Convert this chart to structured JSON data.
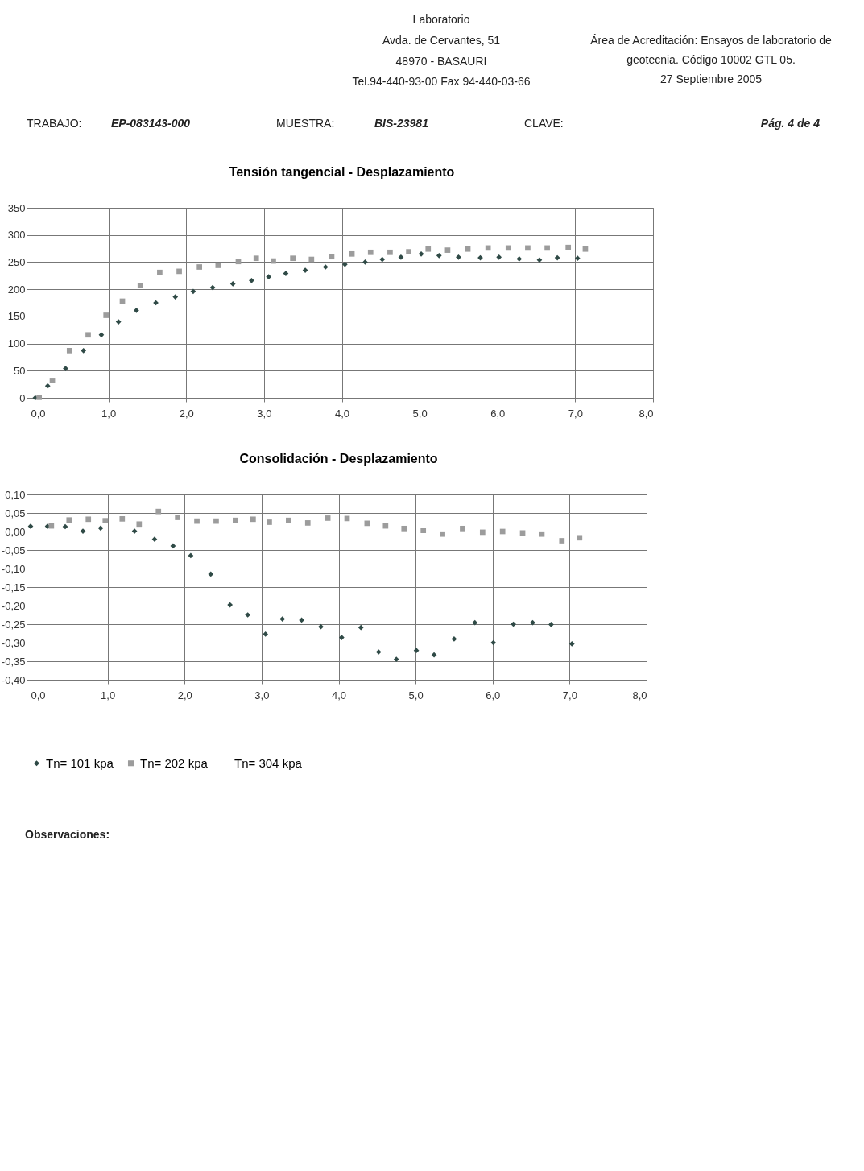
{
  "chart_data": [
    {
      "type": "scatter",
      "title": "Tensión tangencial - Desplazamiento",
      "annotations": [
        "Laboratorio",
        "Avda. de Cervantes, 51",
        "48970 - BASAURI",
        "Tel.94-440-93-00  Fax 94-440-03-66",
        "Área de Acreditación: Ensayos de laboratorio de",
        "geotecnia. Código 10002 GTL 05.",
        "27 Septiembre 2005",
        "TRABAJO:",
        "EP-083143-000",
        "MUESTRA:",
        "BIS-23981",
        "CLAVE:",
        "Pág. 4 de 4"
      ],
      "xlim": [
        0,
        8
      ],
      "xticks": [
        {
          "value": 0,
          "label": "0,0"
        },
        {
          "value": 1,
          "label": "1,0"
        },
        {
          "value": 2,
          "label": "2,0"
        },
        {
          "value": 3,
          "label": "3,0"
        },
        {
          "value": 4,
          "label": "4,0"
        },
        {
          "value": 5,
          "label": "5,0"
        },
        {
          "value": 6,
          "label": "6,0"
        },
        {
          "value": 7,
          "label": "7,0"
        },
        {
          "value": 8,
          "label": "8,0"
        }
      ],
      "ylim": [
        0,
        350
      ],
      "yticks": [
        0,
        50,
        100,
        150,
        200,
        250,
        300,
        350
      ],
      "grid": true,
      "legend": false,
      "series": [
        {
          "color": "#2f4a46",
          "marker": "diamond",
          "x": [
            0.06,
            0.22,
            0.45,
            0.68,
            0.91,
            1.13,
            1.36,
            1.61,
            1.86,
            2.09,
            2.34,
            2.6,
            2.84,
            3.06,
            3.28,
            3.53,
            3.79,
            4.04,
            4.3,
            4.52,
            4.76,
            5.02,
            5.25,
            5.5,
            5.78,
            6.02,
            6.28,
            6.54,
            6.77,
            7.03
          ],
          "values": [
            0,
            22,
            54,
            87,
            116,
            140,
            161,
            175,
            186,
            196,
            203,
            210,
            216,
            223,
            229,
            235,
            241,
            246,
            250,
            255,
            259,
            265,
            262,
            259,
            258,
            259,
            256,
            254,
            258,
            257
          ]
        },
        {
          "color": "#9c9c9c",
          "marker": "square",
          "x": [
            0.11,
            0.28,
            0.5,
            0.74,
            0.97,
            1.18,
            1.41,
            1.66,
            1.91,
            2.17,
            2.41,
            2.67,
            2.9,
            3.12,
            3.37,
            3.61,
            3.87,
            4.13,
            4.37,
            4.62,
            4.86,
            5.11,
            5.36,
            5.62,
            5.88,
            6.14,
            6.39,
            6.64,
            6.91,
            7.13
          ],
          "values": [
            1,
            32,
            87,
            116,
            152,
            178,
            207,
            231,
            233,
            241,
            244,
            251,
            257,
            252,
            257,
            255,
            260,
            265,
            268,
            268,
            269,
            274,
            272,
            274,
            276,
            276,
            276,
            276,
            277,
            274
          ]
        }
      ]
    },
    {
      "type": "scatter",
      "title": "Consolidación - Desplazamiento",
      "annotations": [
        "Observaciones:"
      ],
      "xlim": [
        0,
        8
      ],
      "xticks": [
        {
          "value": 0,
          "label": "0,0"
        },
        {
          "value": 1,
          "label": "1,0"
        },
        {
          "value": 2,
          "label": "2,0"
        },
        {
          "value": 3,
          "label": "3,0"
        },
        {
          "value": 4,
          "label": "4,0"
        },
        {
          "value": 5,
          "label": "5,0"
        },
        {
          "value": 6,
          "label": "6,0"
        },
        {
          "value": 7,
          "label": "7,0"
        },
        {
          "value": 8,
          "label": "8,0"
        }
      ],
      "ylim": [
        -0.4,
        0.1
      ],
      "yticks": [
        {
          "value": 0.1,
          "label": "0,10"
        },
        {
          "value": 0.05,
          "label": "0,05"
        },
        {
          "value": 0,
          "label": "0,00"
        },
        {
          "value": -0.05,
          "label": "-0,05"
        },
        {
          "value": -0.1,
          "label": "-0,10"
        },
        {
          "value": -0.15,
          "label": "-0,15"
        },
        {
          "value": -0.2,
          "label": "-0,20"
        },
        {
          "value": -0.25,
          "label": "-0,25"
        },
        {
          "value": -0.3,
          "label": "-0,30"
        },
        {
          "value": -0.35,
          "label": "-0,35"
        },
        {
          "value": -0.4,
          "label": "-0,40"
        }
      ],
      "grid": true,
      "legend": "bottom",
      "series": [
        {
          "name": "Tn= 101 kpa",
          "color": "#2f4a46",
          "marker": "diamond",
          "x": [
            0.0,
            0.22,
            0.45,
            0.68,
            0.91,
            1.35,
            1.61,
            1.85,
            2.08,
            2.34,
            2.59,
            2.82,
            3.05,
            3.27,
            3.52,
            3.77,
            4.04,
            4.29,
            4.52,
            4.75,
            5.01,
            5.24,
            5.5,
            5.77,
            6.01,
            6.27,
            6.52,
            6.76,
            7.03
          ],
          "values": [
            0.014,
            0.014,
            0.013,
            0.001,
            0.009,
            0.001,
            -0.021,
            -0.039,
            -0.065,
            -0.115,
            -0.198,
            -0.225,
            -0.277,
            -0.236,
            -0.239,
            -0.257,
            -0.286,
            -0.259,
            -0.325,
            -0.345,
            -0.321,
            -0.333,
            -0.29,
            -0.246,
            -0.3,
            -0.25,
            -0.246,
            -0.251,
            -0.303
          ]
        },
        {
          "name": "Tn= 202 kpa",
          "color": "#9c9c9c",
          "marker": "square",
          "x": [
            0.27,
            0.5,
            0.75,
            0.97,
            1.19,
            1.41,
            1.66,
            1.91,
            2.16,
            2.41,
            2.66,
            2.89,
            3.1,
            3.35,
            3.6,
            3.86,
            4.11,
            4.37,
            4.61,
            4.85,
            5.1,
            5.35,
            5.61,
            5.87,
            6.13,
            6.39,
            6.64,
            6.9,
            7.13
          ],
          "values": [
            0.015,
            0.031,
            0.033,
            0.029,
            0.034,
            0.02,
            0.054,
            0.038,
            0.028,
            0.028,
            0.03,
            0.033,
            0.025,
            0.03,
            0.023,
            0.036,
            0.035,
            0.022,
            0.015,
            0.008,
            0.003,
            -0.007,
            0.008,
            -0.002,
            0.0,
            -0.004,
            -0.007,
            -0.025,
            -0.017
          ]
        },
        {
          "name": "Tn= 304 kpa",
          "marker": "none"
        }
      ]
    }
  ]
}
